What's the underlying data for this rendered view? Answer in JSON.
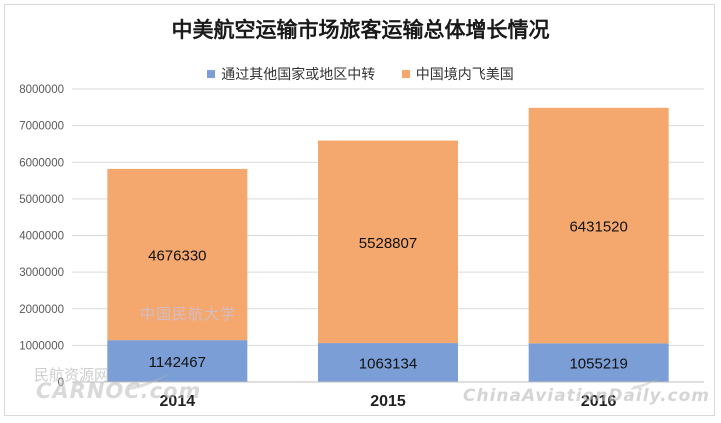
{
  "chart_data": {
    "type": "bar",
    "stacked": true,
    "title": "中美航空运输市场旅客运输总体增长情况",
    "categories": [
      "2014",
      "2015",
      "2016"
    ],
    "series": [
      {
        "name": "通过其他国家或地区中转",
        "color": "#7b9ed6",
        "values": [
          1142467,
          1063134,
          1055219
        ]
      },
      {
        "name": "中国境内飞美国",
        "color": "#f4a86d",
        "values": [
          4676330,
          5528807,
          6431520
        ]
      }
    ],
    "ylim": [
      0,
      8000000
    ],
    "yticks": [
      "0",
      "1000000",
      "2000000",
      "3000000",
      "4000000",
      "5000000",
      "6000000",
      "7000000",
      "8000000"
    ],
    "grid": true,
    "legend_position": "top"
  },
  "watermarks": {
    "center": "中国民航大学",
    "left_cn": "民航资源网",
    "left_en": "CARNOC.com",
    "right": "ChinaAviationDaily.com"
  }
}
